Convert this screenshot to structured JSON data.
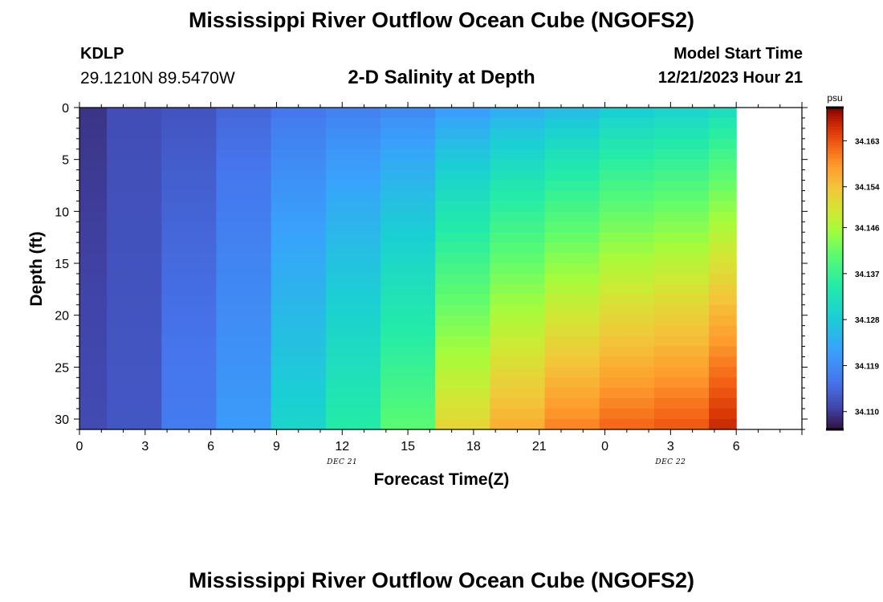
{
  "header": {
    "title": "Mississippi River Outflow Ocean Cube (NGOFS2)",
    "station_id": "KDLP",
    "station_coords": "29.1210N  89.5470W",
    "subtitle": "2-D Salinity at Depth",
    "model_start_label": "Model Start Time",
    "model_start_value": "12/21/2023 Hour 21"
  },
  "footer": {
    "title": "Mississippi River Outflow Ocean Cube (NGOFS2)"
  },
  "chart_data": {
    "type": "heatmap",
    "xlabel": "Forecast Time(Z)",
    "ylabel": "Depth (ft)",
    "x_range": [
      0,
      33
    ],
    "y_range": [
      0,
      31
    ],
    "y_inverted": true,
    "x_major_ticks": [
      {
        "x": 0,
        "label": "0"
      },
      {
        "x": 3,
        "label": "3"
      },
      {
        "x": 6,
        "label": "6"
      },
      {
        "x": 9,
        "label": "9"
      },
      {
        "x": 12,
        "label": "12"
      },
      {
        "x": 15,
        "label": "15"
      },
      {
        "x": 18,
        "label": "18"
      },
      {
        "x": 21,
        "label": "21"
      },
      {
        "x": 24,
        "label": "0"
      },
      {
        "x": 27,
        "label": "3"
      },
      {
        "x": 30,
        "label": "6"
      }
    ],
    "date_labels": [
      {
        "x": 12,
        "label": "DEC 21"
      },
      {
        "x": 27,
        "label": "DEC 22"
      }
    ],
    "y_major_ticks": [
      0,
      5,
      10,
      15,
      20,
      25,
      30
    ],
    "time_columns": [
      {
        "x0": 0,
        "x1": 1.25,
        "top": 34.1095,
        "bottom": 34.1115
      },
      {
        "x0": 1.25,
        "x1": 3.75,
        "top": 34.1118,
        "bottom": 34.1128
      },
      {
        "x0": 3.75,
        "x1": 6.25,
        "top": 34.1125,
        "bottom": 34.1168
      },
      {
        "x0": 6.25,
        "x1": 8.75,
        "top": 34.1145,
        "bottom": 34.1212
      },
      {
        "x0": 8.75,
        "x1": 11.25,
        "top": 34.1163,
        "bottom": 34.1296
      },
      {
        "x0": 11.25,
        "x1": 13.75,
        "top": 34.1178,
        "bottom": 34.1345
      },
      {
        "x0": 13.75,
        "x1": 16.25,
        "top": 34.1192,
        "bottom": 34.1402
      },
      {
        "x0": 16.25,
        "x1": 18.75,
        "top": 34.1218,
        "bottom": 34.1515
      },
      {
        "x0": 18.75,
        "x1": 21.25,
        "top": 34.1242,
        "bottom": 34.156
      },
      {
        "x0": 21.25,
        "x1": 23.75,
        "top": 34.1262,
        "bottom": 34.1595
      },
      {
        "x0": 23.75,
        "x1": 26.25,
        "top": 34.1288,
        "bottom": 34.1615
      },
      {
        "x0": 26.25,
        "x1": 28.75,
        "top": 34.1298,
        "bottom": 34.1625
      },
      {
        "x0": 28.75,
        "x1": 30,
        "top": 34.1318,
        "bottom": 34.166
      }
    ],
    "colorbar": {
      "unit": "psu",
      "min": 34.1065,
      "max": 34.1695,
      "ticks": [
        34.11,
        34.119,
        34.128,
        34.137,
        34.146,
        34.154,
        34.163
      ],
      "tick_labels": [
        "34.110",
        "34.119",
        "34.128",
        "34.137",
        "34.146",
        "34.154",
        "34.163"
      ]
    }
  }
}
